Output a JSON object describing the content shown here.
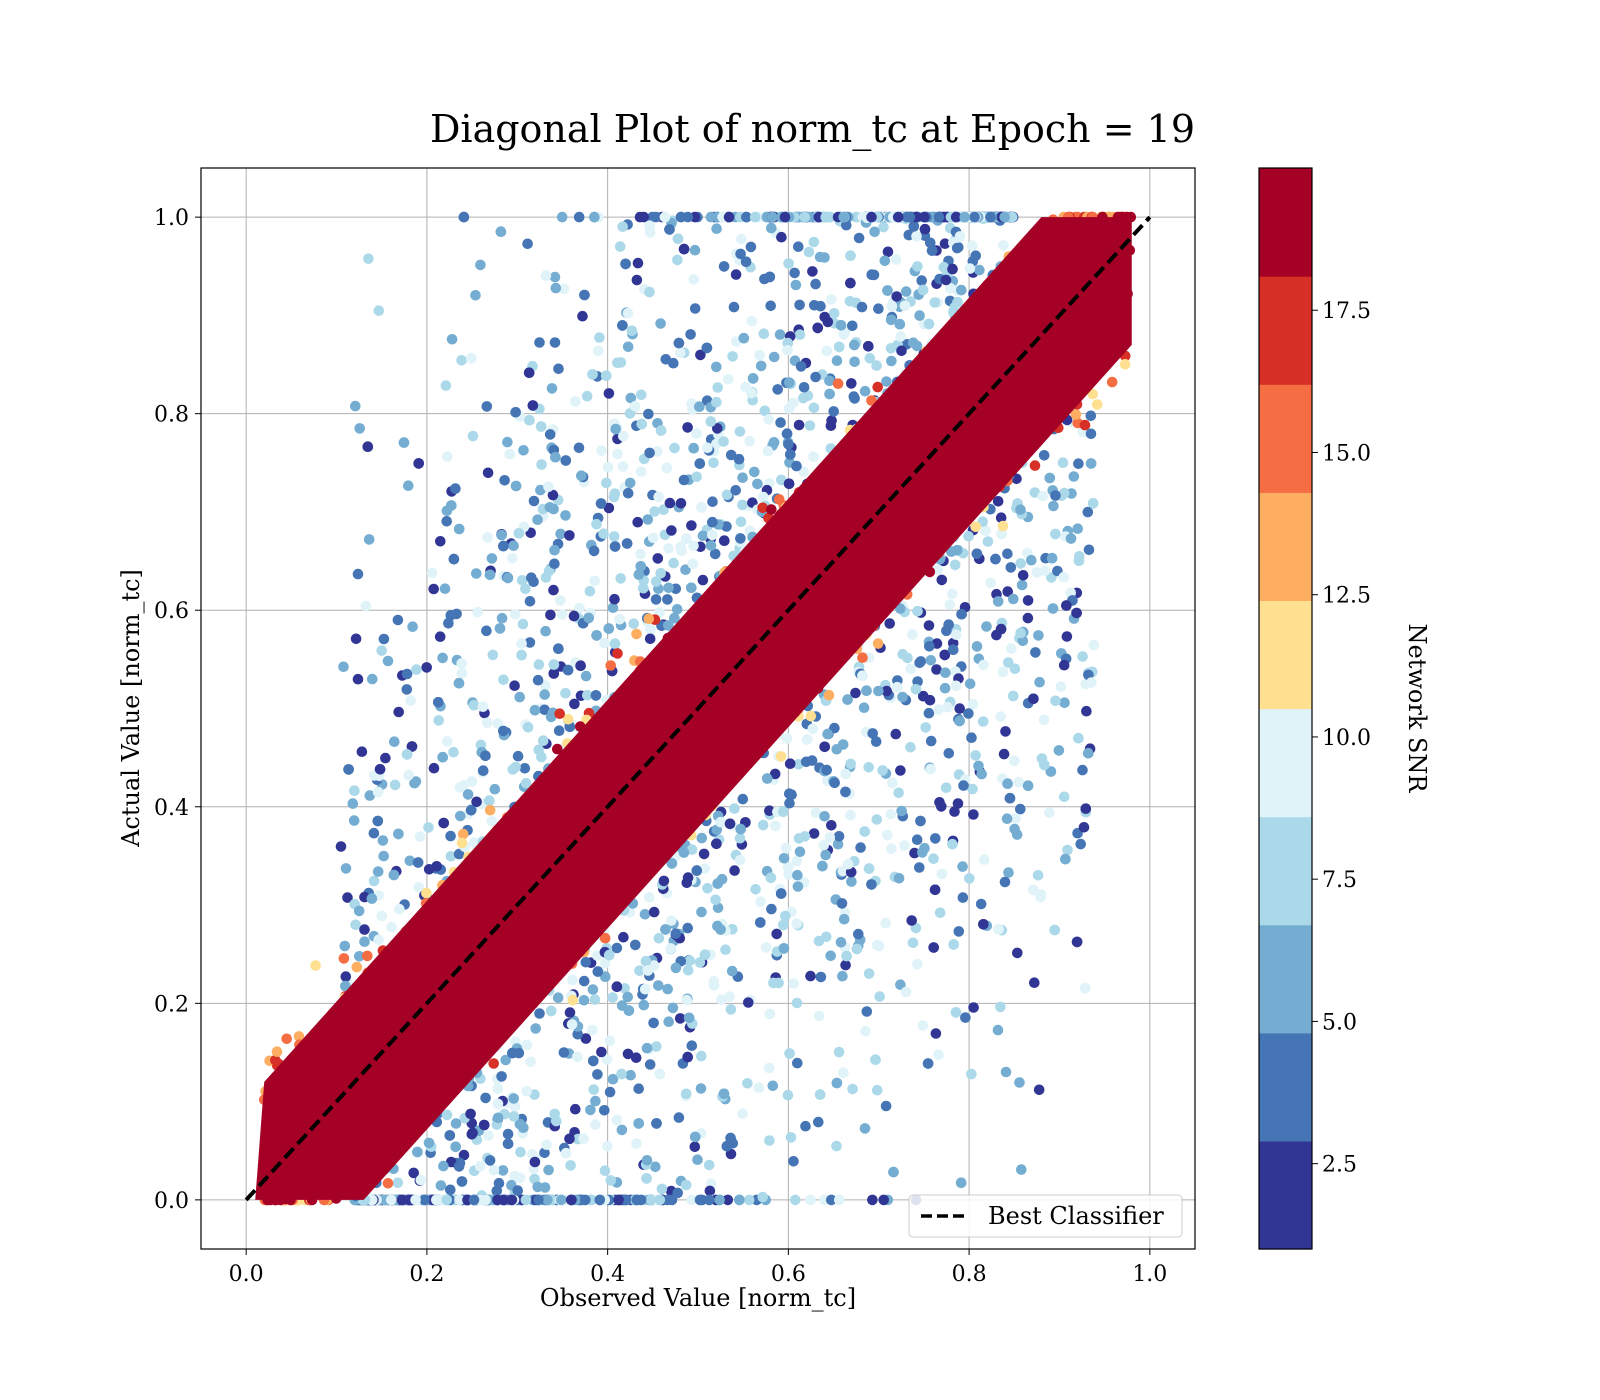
{
  "chart_data": {
    "type": "scatter",
    "title": "Diagonal Plot of norm_tc at Epoch = 19",
    "xlabel": "Observed Value [norm_tc]",
    "ylabel": "Actual Value [norm_tc]",
    "xlim": [
      -0.05,
      1.05
    ],
    "ylim": [
      -0.05,
      1.05
    ],
    "x_ticks": [
      0.0,
      0.2,
      0.4,
      0.6,
      0.8,
      1.0
    ],
    "x_tick_labels": [
      "0.0",
      "0.2",
      "0.4",
      "0.6",
      "0.8",
      "1.0"
    ],
    "y_ticks": [
      0.0,
      0.2,
      0.4,
      0.6,
      0.8,
      1.0
    ],
    "y_tick_labels": [
      "0.0",
      "0.2",
      "0.4",
      "0.6",
      "0.8",
      "1.0"
    ],
    "grid": true,
    "reference_line": {
      "name": "Best Classifier",
      "x": [
        0,
        1
      ],
      "y": [
        0,
        1
      ],
      "style": "dashed",
      "color": "#000000"
    },
    "legend": {
      "position": "bottom-right",
      "entries": [
        "Best Classifier"
      ]
    },
    "colorbar": {
      "label": "Network SNR",
      "range": [
        1.0,
        20.0
      ],
      "ticks": [
        2.5,
        5.0,
        7.5,
        10.0,
        12.5,
        15.0,
        17.5
      ],
      "tick_labels": [
        "2.5",
        "5.0",
        "7.5",
        "10.0",
        "12.5",
        "15.0",
        "17.5"
      ],
      "colors": [
        "#313695",
        "#4575b4",
        "#74add1",
        "#abd9e9",
        "#e0f3f8",
        "#fee090",
        "#fdae61",
        "#f46d43",
        "#d73027",
        "#a50026"
      ]
    },
    "diagonal_band": {
      "description": "high-SNR points tightly clustered along y = x",
      "snr_min": 18.0
    }
  }
}
